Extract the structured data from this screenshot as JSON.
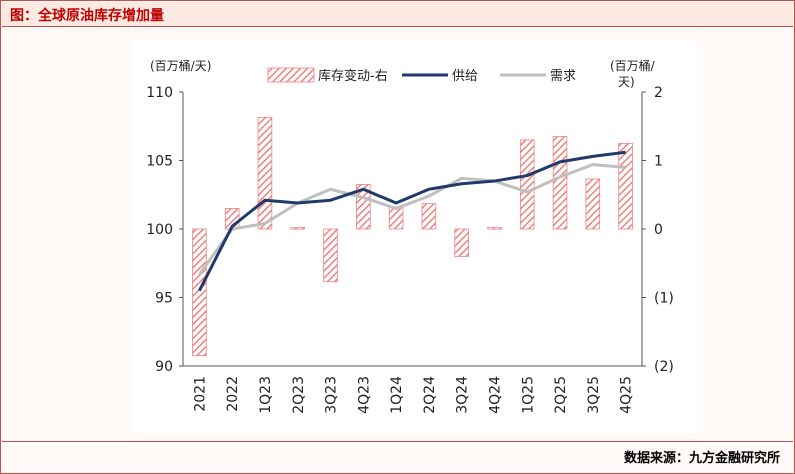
{
  "header": {
    "title": "图：全球原油库存增加量"
  },
  "footer": {
    "source": "数据来源：九方金融研究所"
  },
  "colors": {
    "bar": "#f08080",
    "supply": "#1f3a6b",
    "demand": "#bfbfbf",
    "accent": "#c00000"
  },
  "chart_data": {
    "type": "bar+line",
    "categories": [
      "2021",
      "2022",
      "1Q23",
      "2Q23",
      "3Q23",
      "4Q23",
      "1Q24",
      "2Q24",
      "3Q24",
      "4Q24",
      "1Q25",
      "2Q25",
      "3Q25",
      "4Q25"
    ],
    "series": [
      {
        "name": "库存变动-右",
        "type": "bar",
        "axis": "right",
        "values": [
          -1.85,
          0.3,
          1.63,
          0.02,
          -0.77,
          0.65,
          0.32,
          0.37,
          -0.4,
          0.02,
          1.3,
          1.35,
          0.73,
          1.25
        ]
      },
      {
        "name": "供给",
        "type": "line",
        "axis": "left",
        "values": [
          95.5,
          100.2,
          102.1,
          101.9,
          102.1,
          102.9,
          101.9,
          102.9,
          103.3,
          103.5,
          103.9,
          104.9,
          105.3,
          105.6
        ]
      },
      {
        "name": "需求",
        "type": "line",
        "axis": "left",
        "values": [
          96.7,
          100.0,
          100.4,
          101.9,
          102.9,
          102.3,
          101.5,
          102.4,
          103.7,
          103.5,
          102.7,
          103.8,
          104.7,
          104.5
        ]
      }
    ],
    "y_left": {
      "label": "(百万桶/天)",
      "ylim": [
        90,
        110
      ],
      "ticks": [
        "90",
        "95",
        "100",
        "105",
        "110"
      ]
    },
    "y_right": {
      "label": "(百万桶/天)",
      "ylim": [
        -2,
        2
      ],
      "ticks": [
        "(2)",
        "(1)",
        "0",
        "1",
        "2"
      ]
    },
    "legend": {
      "position": "top"
    }
  }
}
